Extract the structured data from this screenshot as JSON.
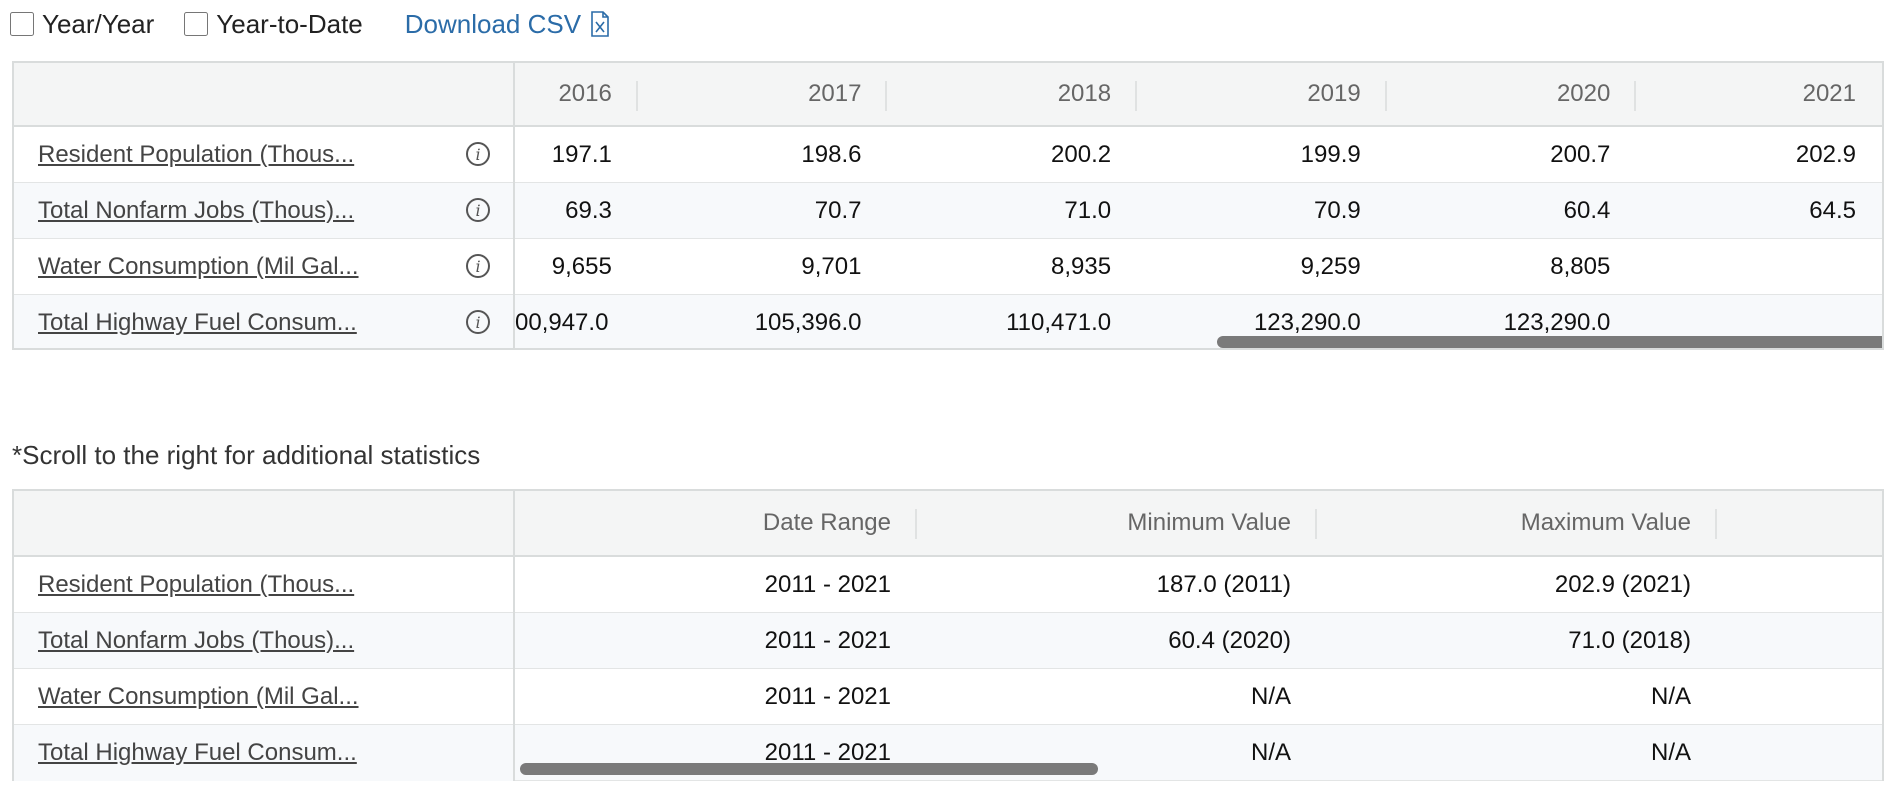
{
  "toolbar": {
    "year_over_year_label": "Year/Year",
    "year_to_date_label": "Year-to-Date",
    "download_label": "Download CSV",
    "download_icon": "csv-file-icon"
  },
  "stats_table": {
    "years": [
      "2016",
      "2017",
      "2018",
      "2019",
      "2020",
      "2021"
    ],
    "rows": [
      {
        "label": "Resident Population (Thous...",
        "values": [
          "197.1",
          "198.6",
          "200.2",
          "199.9",
          "200.7",
          "202.9"
        ]
      },
      {
        "label": "Total Nonfarm Jobs (Thous)...",
        "values": [
          "69.3",
          "70.7",
          "71.0",
          "70.9",
          "60.4",
          "64.5"
        ]
      },
      {
        "label": "Water Consumption (Mil Gal...",
        "values": [
          "9,655",
          "9,701",
          "8,935",
          "9,259",
          "8,805",
          ""
        ]
      },
      {
        "label": "Total Highway Fuel Consum...",
        "values": [
          "00,947.0",
          "105,396.0",
          "110,471.0",
          "123,290.0",
          "123,290.0",
          ""
        ]
      }
    ],
    "info_icon": "info-icon"
  },
  "scroll_note": "*Scroll to the right for additional statistics",
  "summary_table": {
    "headers": [
      "Date Range",
      "Minimum Value",
      "Maximum Value"
    ],
    "rows": [
      {
        "label": "Resident Population (Thous...",
        "values": [
          "2011 - 2021",
          "187.0 (2011)",
          "202.9 (2021)"
        ]
      },
      {
        "label": "Total Nonfarm Jobs (Thous)...",
        "values": [
          "2011 - 2021",
          "60.4 (2020)",
          "71.0 (2018)"
        ]
      },
      {
        "label": "Water Consumption (Mil Gal...",
        "values": [
          "2011 - 2021",
          "N/A",
          "N/A"
        ]
      },
      {
        "label": "Total Highway Fuel Consum...",
        "values": [
          "2011 - 2021",
          "N/A",
          "N/A"
        ]
      }
    ]
  }
}
